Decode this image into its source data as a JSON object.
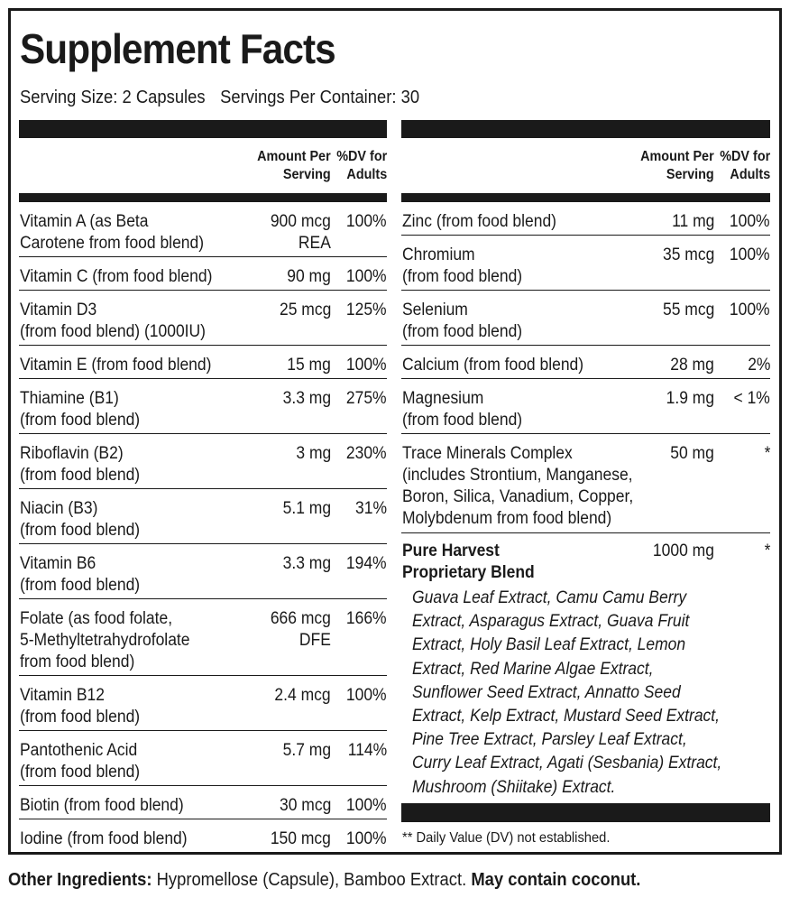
{
  "title": "Supplement Facts",
  "serving_size": "Serving Size: 2 Capsules",
  "servings_per_container": "Servings Per Container: 30",
  "header": {
    "amount_line1": "Amount Per",
    "amount_line2": "Serving",
    "dv_line1": "%DV for",
    "dv_line2": "Adults"
  },
  "left_rows": [
    {
      "name": [
        "Vitamin A (as Beta",
        "Carotene from food blend)"
      ],
      "amount": [
        "900 mcg",
        "REA"
      ],
      "dv": "100%"
    },
    {
      "name": [
        "Vitamin C (from food blend)"
      ],
      "amount": [
        "90 mg"
      ],
      "dv": "100%"
    },
    {
      "name": [
        "Vitamin D3",
        "(from food blend) (1000IU)"
      ],
      "amount": [
        "25 mcg"
      ],
      "dv": "125%"
    },
    {
      "name": [
        "Vitamin E (from food blend)"
      ],
      "amount": [
        "15 mg"
      ],
      "dv": "100%"
    },
    {
      "name": [
        "Thiamine (B1)",
        "(from food blend)"
      ],
      "amount": [
        "3.3 mg"
      ],
      "dv": "275%"
    },
    {
      "name": [
        "Riboflavin (B2)",
        "(from food blend)"
      ],
      "amount": [
        "3 mg"
      ],
      "dv": "230%"
    },
    {
      "name": [
        "Niacin (B3)",
        "(from food blend)"
      ],
      "amount": [
        "5.1 mg"
      ],
      "dv": "31%"
    },
    {
      "name": [
        "Vitamin B6",
        "(from food blend)"
      ],
      "amount": [
        "3.3 mg"
      ],
      "dv": "194%"
    },
    {
      "name": [
        "Folate (as food folate,",
        "5-Methyltetrahydrofolate",
        "from food blend)"
      ],
      "amount": [
        "666 mcg",
        "DFE"
      ],
      "dv": "166%"
    },
    {
      "name": [
        "Vitamin B12",
        "(from food blend)"
      ],
      "amount": [
        "2.4 mcg"
      ],
      "dv": "100%"
    },
    {
      "name": [
        "Pantothenic Acid",
        "(from food blend)"
      ],
      "amount": [
        "5.7 mg"
      ],
      "dv": "114%"
    },
    {
      "name": [
        "Biotin (from food blend)"
      ],
      "amount": [
        "30 mcg"
      ],
      "dv": "100%"
    },
    {
      "name": [
        "Iodine (from food blend)"
      ],
      "amount": [
        "150 mcg"
      ],
      "dv": "100%"
    }
  ],
  "right_rows": [
    {
      "name": [
        "Zinc (from food blend)"
      ],
      "amount": [
        "11 mg"
      ],
      "dv": "100%"
    },
    {
      "name": [
        "Chromium",
        "(from food blend)"
      ],
      "amount": [
        "35 mcg"
      ],
      "dv": "100%"
    },
    {
      "name": [
        "Selenium",
        "(from food blend)"
      ],
      "amount": [
        "55 mcg"
      ],
      "dv": "100%"
    },
    {
      "name": [
        "Calcium (from food blend)"
      ],
      "amount": [
        "28 mg"
      ],
      "dv": "2%"
    },
    {
      "name": [
        "Magnesium",
        "(from food blend)"
      ],
      "amount": [
        "1.9 mg"
      ],
      "dv": "< 1%"
    },
    {
      "name": [
        "Trace Minerals Complex",
        "(includes Strontium, Manganese,",
        "Boron, Silica, Vanadium, Copper,",
        "Molybdenum from food blend)"
      ],
      "amount": [
        "50 mg"
      ],
      "dv": "*"
    }
  ],
  "blend": {
    "name": [
      "Pure Harvest",
      "Proprietary Blend"
    ],
    "amount": "1000 mg",
    "dv": "*",
    "ingredients": [
      "Guava Leaf Extract, Camu Camu Berry",
      "Extract, Asparagus Extract, Guava Fruit",
      "Extract, Holy Basil Leaf Extract, Lemon",
      "Extract, Red Marine Algae Extract,",
      "Sunflower Seed Extract, Annatto Seed",
      "Extract, Kelp Extract, Mustard Seed Extract,",
      "Pine Tree Extract, Parsley Leaf Extract,",
      "Curry Leaf Extract, Agati (Sesbania) Extract,",
      "Mushroom (Shiitake) Extract."
    ]
  },
  "footnote": "** Daily Value (DV) not established.",
  "other_ingredients": {
    "label": "Other Ingredients:",
    "text": " Hypromellose (Capsule), Bamboo Extract. ",
    "warning": "May contain coconut."
  }
}
